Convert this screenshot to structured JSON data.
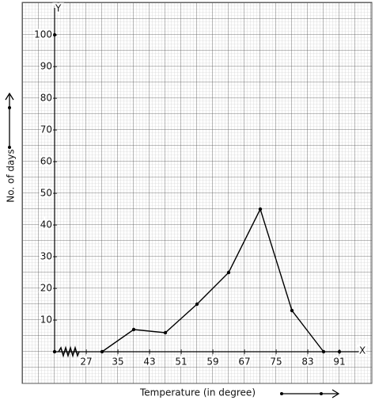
{
  "chart_data": {
    "type": "line",
    "x_axis_name": "X",
    "y_axis_name": "Y",
    "xlabel": "Temperature (in degree)",
    "ylabel": "No. of days",
    "x": [
      31,
      39,
      47,
      55,
      63,
      71,
      79,
      87
    ],
    "values": [
      0,
      7,
      6,
      15,
      25,
      45,
      13,
      0
    ],
    "color": "#000000",
    "xlim": [
      19,
      96
    ],
    "ylim": [
      0,
      108
    ],
    "xticks": [
      27,
      35,
      43,
      51,
      59,
      67,
      75,
      83,
      91
    ],
    "yticks": [
      10,
      20,
      30,
      40,
      50,
      60,
      70,
      80,
      90,
      100
    ],
    "grid": true
  }
}
